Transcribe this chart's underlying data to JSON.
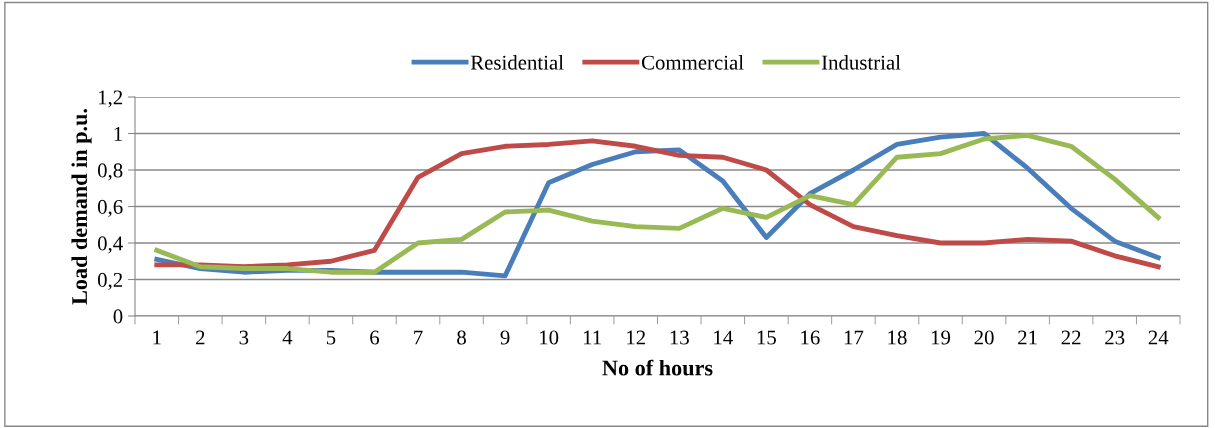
{
  "chart_data": {
    "type": "line",
    "xlabel": "No of hours",
    "ylabel": "Load demand in p.u.",
    "categories": [
      "1",
      "2",
      "3",
      "4",
      "5",
      "6",
      "7",
      "8",
      "9",
      "10",
      "11",
      "12",
      "13",
      "14",
      "15",
      "16",
      "17",
      "18",
      "19",
      "20",
      "21",
      "22",
      "23",
      "24"
    ],
    "series": [
      {
        "name": "Residential",
        "color": "#4a7ebb",
        "values": [
          0.31,
          0.26,
          0.24,
          0.25,
          0.25,
          0.24,
          0.24,
          0.24,
          0.22,
          0.73,
          0.83,
          0.9,
          0.91,
          0.74,
          0.43,
          0.67,
          0.8,
          0.94,
          0.98,
          1.0,
          0.81,
          0.59,
          0.41,
          0.32
        ]
      },
      {
        "name": "Commercial",
        "color": "#be4b48",
        "values": [
          0.28,
          0.28,
          0.27,
          0.28,
          0.3,
          0.36,
          0.76,
          0.89,
          0.93,
          0.94,
          0.96,
          0.93,
          0.88,
          0.87,
          0.8,
          0.61,
          0.49,
          0.44,
          0.4,
          0.4,
          0.42,
          0.41,
          0.33,
          0.27
        ]
      },
      {
        "name": "Industrial",
        "color": "#98b954",
        "values": [
          0.36,
          0.27,
          0.26,
          0.26,
          0.24,
          0.24,
          0.4,
          0.42,
          0.57,
          0.58,
          0.52,
          0.49,
          0.48,
          0.59,
          0.54,
          0.66,
          0.61,
          0.87,
          0.89,
          0.97,
          0.99,
          0.93,
          0.75,
          0.54
        ]
      }
    ],
    "ylim": [
      0,
      1.2
    ],
    "yticks": [
      0,
      {
        "value": 0.2,
        "label": "0,2"
      },
      {
        "value": 0.4,
        "label": "0,4"
      },
      {
        "value": 0.6,
        "label": "0,6"
      },
      {
        "value": 0.8,
        "label": "0,8"
      },
      1,
      {
        "value": 1.2,
        "label": "1,2"
      }
    ],
    "grid": "y",
    "legend": "top",
    "marker": "none",
    "line_style": "solid"
  }
}
